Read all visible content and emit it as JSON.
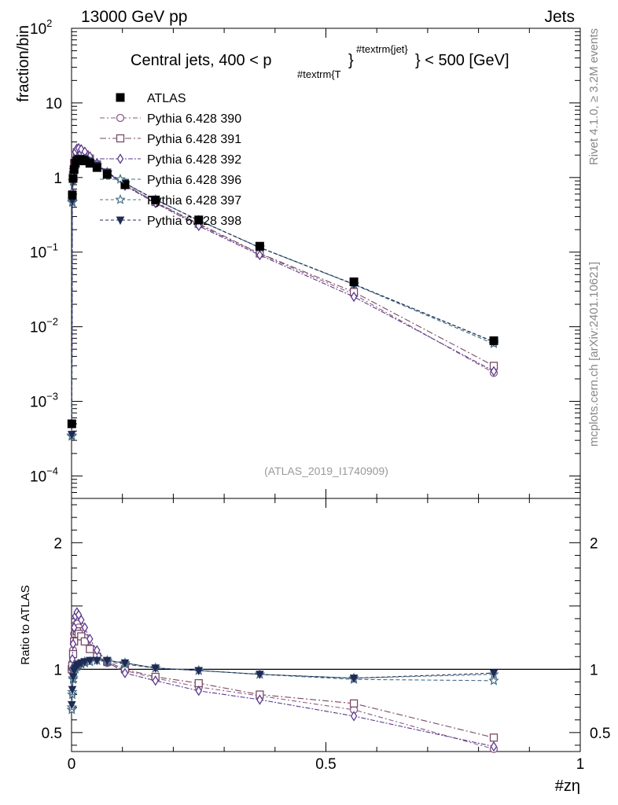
{
  "chart_data": {
    "type": "line",
    "energy_label": "13000 GeV pp",
    "process_label": "Jets",
    "title": "Central jets, 400 < p",
    "title_sub": "#textrm{T",
    "title_sup_close": "}",
    "title_sup": "#textrm{jet}",
    "title_tail": "} < 500 [GeV]",
    "ylabel": "fraction/bin",
    "ylabel_ratio": "Ratio to ATLAS",
    "xlabel": "#zη",
    "watermark": "(ATLAS_2019_I1740909)",
    "side_text_top": "Rivet 4.1.0, ≥ 3.2M events",
    "side_text_bottom": "mcplots.cern.ch [arXiv:2401.10621]",
    "xlim": [
      0,
      1
    ],
    "ylim": [
      5e-05,
      100
    ],
    "ylim_ratio": [
      0.35,
      2.35
    ],
    "x_ticks": [
      {
        "v": 0,
        "label": "0"
      },
      {
        "v": 0.5,
        "label": "0.5"
      },
      {
        "v": 1,
        "label": "1"
      }
    ],
    "y_ticks": [
      {
        "v": 100,
        "base": "10",
        "exp": "2"
      },
      {
        "v": 10,
        "base": "10",
        "exp": ""
      },
      {
        "v": 1,
        "base": "1",
        "exp": ""
      },
      {
        "v": 0.1,
        "base": "10",
        "exp": "−1"
      },
      {
        "v": 0.01,
        "base": "10",
        "exp": "−2"
      },
      {
        "v": 0.001,
        "base": "10",
        "exp": "−3"
      },
      {
        "v": 0.0001,
        "base": "10",
        "exp": "−4"
      }
    ],
    "ratio_ticks": [
      {
        "v": 2,
        "label": "2"
      },
      {
        "v": 1,
        "label": "1"
      },
      {
        "v": 0.5,
        "label": "0.5"
      }
    ],
    "x": [
      0.0005,
      0.0015,
      0.003,
      0.005,
      0.0075,
      0.0105,
      0.014,
      0.019,
      0.026,
      0.036,
      0.05,
      0.07,
      0.105,
      0.165,
      0.25,
      0.37,
      0.555,
      0.83
    ],
    "data": {
      "name": "ATLAS",
      "values": [
        0.0005,
        0.58,
        0.97,
        1.28,
        1.55,
        1.68,
        1.73,
        1.72,
        1.67,
        1.55,
        1.36,
        1.1,
        0.8,
        0.5,
        0.27,
        0.12,
        0.04,
        0.0065
      ]
    },
    "series": [
      {
        "name": "Pythia 6.428 390",
        "color": "#8a5a83",
        "marker": "circle-open",
        "dash": "6,3,2,3",
        "ratio": [
          1.0,
          1.05,
          1.15,
          1.28,
          1.35,
          1.36,
          1.33,
          1.3,
          1.25,
          1.17,
          1.1,
          1.05,
          0.99,
          0.93,
          0.86,
          0.79,
          0.68,
          0.37
        ]
      },
      {
        "name": "Pythia 6.428 391",
        "color": "#7a4a64",
        "marker": "square-open",
        "dash": "8,3,2,3",
        "ratio": [
          1.0,
          1.03,
          1.12,
          1.22,
          1.28,
          1.3,
          1.28,
          1.26,
          1.22,
          1.16,
          1.1,
          1.06,
          1.0,
          0.94,
          0.89,
          0.8,
          0.73,
          0.46
        ]
      },
      {
        "name": "Pythia 6.428 392",
        "color": "#5a3a8e",
        "marker": "diamond-open",
        "dash": "6,2,2,2",
        "ratio": [
          1.0,
          1.08,
          1.2,
          1.33,
          1.42,
          1.45,
          1.43,
          1.39,
          1.33,
          1.24,
          1.15,
          1.06,
          0.97,
          0.91,
          0.83,
          0.76,
          0.63,
          0.39
        ]
      },
      {
        "name": "Pythia 6.428 396",
        "color": "#3f6a80",
        "marker": "star-open",
        "dash": "5,3",
        "ratio": [
          0.68,
          0.8,
          0.92,
          0.98,
          1.0,
          1.02,
          1.03,
          1.04,
          1.05,
          1.06,
          1.07,
          1.06,
          1.04,
          1.01,
          0.99,
          0.96,
          0.92,
          0.91
        ]
      },
      {
        "name": "Pythia 6.428 397",
        "color": "#4d7088",
        "marker": "star-open",
        "dash": "4,3",
        "ratio": [
          0.7,
          0.82,
          0.93,
          0.99,
          1.01,
          1.03,
          1.04,
          1.05,
          1.06,
          1.06,
          1.07,
          1.07,
          1.05,
          1.01,
          0.99,
          0.96,
          0.93,
          0.96
        ]
      },
      {
        "name": "Pythia 6.428 398",
        "color": "#1f2a55",
        "marker": "triangle-down",
        "dash": "4,3",
        "ratio": [
          0.72,
          0.84,
          0.94,
          0.99,
          1.01,
          1.03,
          1.04,
          1.05,
          1.06,
          1.07,
          1.07,
          1.07,
          1.05,
          1.01,
          0.99,
          0.96,
          0.93,
          0.97
        ]
      }
    ]
  }
}
